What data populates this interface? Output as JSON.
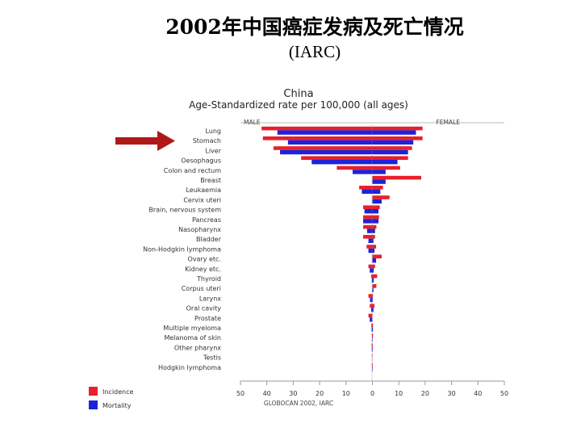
{
  "slide": {
    "title": "2002年中国癌症发病及死亡情况",
    "subtitle": "(IARC)"
  },
  "chart_data": {
    "type": "bar",
    "layout": "population-pyramid",
    "title": "China",
    "subtitle": "Age-Standardized rate per 100,000 (all ages)",
    "left_label": "MALE",
    "right_label": "FEMALE",
    "source": "GLOBOCAN 2002, IARC",
    "highlight_category": "Stomach",
    "xlim": [
      -50,
      50
    ],
    "xticks": [
      -50,
      -40,
      -30,
      -20,
      -10,
      0,
      10,
      20,
      30,
      40,
      50
    ],
    "xtick_labels": [
      "50",
      "40",
      "30",
      "20",
      "10",
      "0",
      "10",
      "20",
      "30",
      "40",
      "50"
    ],
    "categories": [
      "Lung",
      "Stomach",
      "Liver",
      "Oesophagus",
      "Colon and rectum",
      "Breast",
      "Leukaemia",
      "Cervix uteri",
      "Brain, nervous system",
      "Pancreas",
      "Nasopharynx",
      "Bladder",
      "Non-Hodgkin lymphoma",
      "Ovary etc.",
      "Kidney etc.",
      "Thyroid",
      "Corpus uteri",
      "Larynx",
      "Oral cavity",
      "Prostate",
      "Multiple myeloma",
      "Melanoma of skin",
      "Other pharynx",
      "Testis",
      "Hodgkin lymphoma"
    ],
    "series": [
      {
        "name": "Incidence",
        "color": "#e8202a",
        "male": [
          42,
          41.5,
          37.5,
          27,
          13.5,
          0,
          5,
          0,
          3.5,
          3.5,
          3.5,
          3.5,
          2.2,
          0,
          1.5,
          0.5,
          0,
          1.5,
          1,
          1.5,
          0.4,
          0.2,
          0.3,
          0.2,
          0.2
        ],
        "female": [
          19,
          19,
          15,
          13.5,
          10.5,
          18.5,
          4,
          6.5,
          2.8,
          2.5,
          1.5,
          1,
          1.4,
          3.5,
          1,
          1.8,
          1.5,
          0.2,
          0.8,
          0,
          0.2,
          0.2,
          0.1,
          0,
          0.1
        ]
      },
      {
        "name": "Mortality",
        "color": "#1e22d8",
        "male": [
          36,
          32,
          35,
          23,
          7.5,
          0,
          4,
          0,
          3,
          3.5,
          2,
          1.5,
          1.5,
          0,
          1,
          0.2,
          0,
          0.9,
          0.5,
          1,
          0.3,
          0.1,
          0.2,
          0.1,
          0.1
        ],
        "female": [
          16.5,
          15.5,
          13.5,
          9.5,
          5,
          5,
          3,
          3.5,
          2.3,
          2.3,
          1,
          0.4,
          0.8,
          1.4,
          0.5,
          0.5,
          0.4,
          0.1,
          0.4,
          0,
          0.2,
          0.1,
          0.1,
          0,
          0.1
        ]
      }
    ],
    "legend_position": "bottom-left",
    "grid": false
  }
}
